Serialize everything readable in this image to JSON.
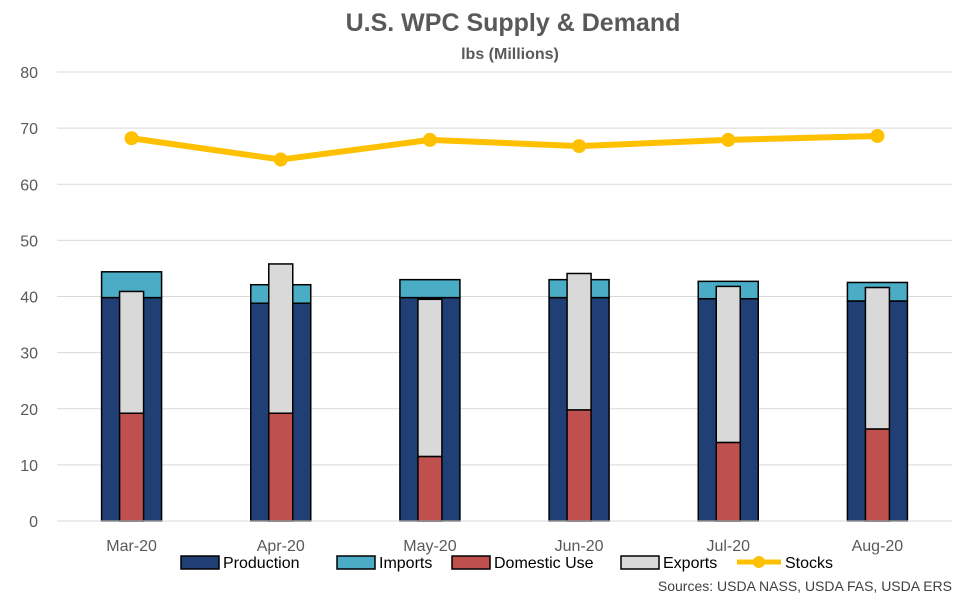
{
  "chart_data": {
    "type": "bar",
    "title": "U.S. WPC Supply & Demand",
    "subtitle": "lbs (Millions)",
    "categories": [
      "Mar-20",
      "Apr-20",
      "May-20",
      "Jun-20",
      "Jul-20",
      "Aug-20"
    ],
    "ylim": [
      0,
      80
    ],
    "yticks": [
      0,
      10,
      20,
      30,
      40,
      50,
      60,
      70,
      80
    ],
    "grid": true,
    "legend_position": "bottom",
    "supply_series": [
      {
        "name": "Production",
        "values": [
          39.8,
          38.8,
          39.8,
          39.8,
          39.6,
          39.2
        ],
        "color": "#1f3f75"
      },
      {
        "name": "Imports",
        "values": [
          4.6,
          3.3,
          3.2,
          3.2,
          3.1,
          3.3
        ],
        "color": "#4bacc6"
      }
    ],
    "demand_series": [
      {
        "name": "Domestic Use",
        "values": [
          19.2,
          19.2,
          11.5,
          19.8,
          14.0,
          16.4
        ],
        "color": "#c0504d"
      },
      {
        "name": "Exports",
        "values": [
          21.7,
          26.6,
          28.0,
          24.3,
          27.8,
          25.2
        ],
        "color": "#d9d9d9"
      }
    ],
    "line_series": [
      {
        "name": "Stocks",
        "values": [
          68.2,
          64.4,
          67.9,
          66.8,
          67.9,
          68.6
        ],
        "color": "#ffc000"
      }
    ],
    "source": "Sources: USDA NASS, USDA FAS, USDA ERS"
  }
}
